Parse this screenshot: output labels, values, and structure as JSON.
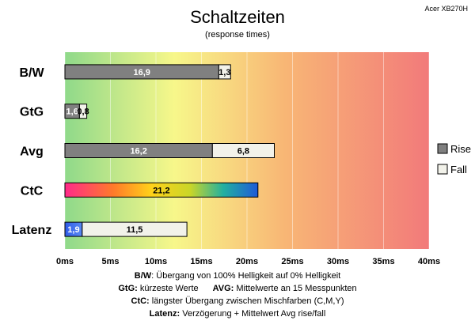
{
  "chart_data": {
    "type": "bar",
    "title": "Schaltzeiten",
    "subtitle": "(response times)",
    "model": "Acer XB270H",
    "categories": [
      "B/W",
      "GtG",
      "Avg",
      "CtC",
      "Latenz"
    ],
    "series": [
      {
        "name": "Rise",
        "color": "#808080",
        "values": [
          16.9,
          1.6,
          16.2,
          21.2,
          1.9
        ],
        "labels": [
          "16,9",
          "1,6",
          "16,2",
          "21,2",
          "1,9"
        ]
      },
      {
        "name": "Fall",
        "color": "#f2f2ea",
        "values": [
          1.3,
          0.8,
          6.8,
          null,
          11.5
        ],
        "labels": [
          "1,3",
          "0,8",
          "6,8",
          "",
          "11,5"
        ]
      }
    ],
    "special_bars": {
      "CtC": "rainbow-gradient",
      "Latenz": "blue-rise"
    },
    "xlim": [
      0,
      40
    ],
    "xticks": [
      0,
      5,
      10,
      15,
      20,
      25,
      30,
      35,
      40
    ],
    "xtick_labels": [
      "0ms",
      "5ms",
      "10ms",
      "15ms",
      "20ms",
      "25ms",
      "30ms",
      "35ms",
      "40ms"
    ],
    "legend_position": "right",
    "background": "green-yellow-red gradient",
    "grid": true
  },
  "notes": {
    "bw_term": "B/W",
    "bw_text": ":  Übergang von 100% Helligkeit auf 0% Helligkeit",
    "gtg_term": "GtG:",
    "gtg_text": " kürzeste  Werte",
    "avg_term": "AVG:",
    "avg_text": " Mittelwerte  an 15 Messpunkten",
    "ctc_term": "CtC:",
    "ctc_text": " längster Übergang  zwischen Mischfarben  (C,M,Y)",
    "lat_term": "Latenz:",
    "lat_text": " Verzögerung  + Mittelwert  Avg rise/fall"
  }
}
